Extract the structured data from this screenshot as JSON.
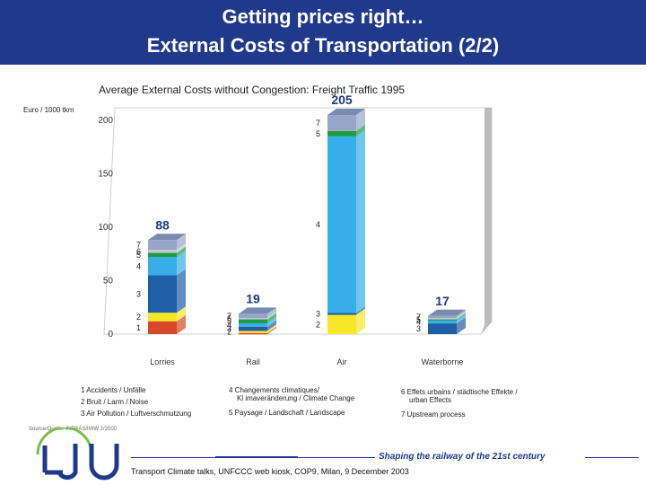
{
  "header": {
    "line1": "Getting prices right…",
    "line2": "External Costs of Transportation (2/2)"
  },
  "chart_data": {
    "type": "bar",
    "stacked": true,
    "title": "Average External Costs without Congestion: Freight Traffic 1995",
    "ylabel": "Euro / 1000 tkm",
    "ylim": [
      0,
      210
    ],
    "yticks": [
      0,
      50,
      100,
      150,
      200
    ],
    "categories": [
      "Lorries",
      "Rail",
      "Air",
      "Waterborne"
    ],
    "totals": [
      88,
      19,
      205,
      17
    ],
    "segments": [
      {
        "key": "1",
        "name": "Accidents / Unfälle",
        "color": "#d9472a",
        "values": [
          12,
          1,
          0,
          0
        ]
      },
      {
        "key": "2",
        "name": "Bruit / Larm / Noise",
        "color": "#f5e726",
        "values": [
          8,
          2,
          18,
          0
        ]
      },
      {
        "key": "3",
        "name": "Air Pollution / Luftverschmutzung",
        "color": "#1f5fa8",
        "values": [
          35,
          4,
          2,
          10
        ]
      },
      {
        "key": "4",
        "name": "Changements climatiques/ Kl imaveränderung / Climate Change",
        "color": "#35aeea",
        "values": [
          17,
          3,
          165,
          3
        ]
      },
      {
        "key": "5",
        "name": "Paysage / Landschaft / Landscape",
        "color": "#1e9c43",
        "values": [
          4,
          4,
          5,
          1
        ]
      },
      {
        "key": "6",
        "name": "Effets urbains / städtische Effekte / urban Effects",
        "color": "#c3c8d6",
        "values": [
          3,
          1,
          0,
          1
        ]
      },
      {
        "key": "7",
        "name": "Upstream process",
        "color": "#95a6c6",
        "values": [
          9,
          4,
          15,
          2
        ]
      }
    ],
    "segment_labels": [
      [
        "1",
        "2",
        "3",
        "4",
        "5",
        "6",
        "7"
      ],
      [
        "2",
        "3",
        "4",
        "5",
        "6",
        "7"
      ],
      [
        "2",
        "3",
        "4",
        "5",
        "7"
      ],
      [
        "3",
        "4",
        "5",
        "7"
      ]
    ]
  },
  "legend": {
    "col1": [
      "1  Accidents / Unfälle",
      "2  Bruit / Larm / Noise",
      "3  Air Pollution / Luftverschmutzung"
    ],
    "col2a": "4  Changements climatiques/",
    "col2b": "Kl imaveränderung / Climate Change",
    "col2c": "5  Paysage / Landschaft / Landscape",
    "col3a": "6  Effets urbains / städtische Effekte /",
    "col3b": "urban Effects",
    "col3c": "7  Upstream process"
  },
  "source": "Source/Quelle: INFRAS/IWW 2/2000",
  "footer": {
    "tagline": "Shaping the railway of the 21st century",
    "note": "Transport Climate talks, UNFCCC web kiosk, COP9, Milan, 9 December 2003"
  }
}
